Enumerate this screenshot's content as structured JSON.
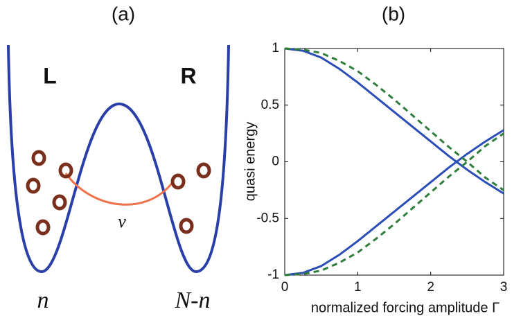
{
  "panel_a": {
    "label": "(a)",
    "left": "L",
    "right": "R",
    "coupling": "v",
    "left_count": "n",
    "right_count": "N-n"
  },
  "chart_data": {
    "type": "line",
    "title": "(b)",
    "xlabel": "normalized forcing amplitude Γ",
    "ylabel": "quasi energy",
    "x": [
      0,
      0.25,
      0.5,
      0.75,
      1,
      1.25,
      1.5,
      1.75,
      2,
      2.25,
      2.5,
      2.75,
      3
    ],
    "series": [
      {
        "color": "#2a4db8",
        "dashed": false,
        "values": [
          1,
          0.98,
          0.92,
          0.82,
          0.7,
          0.57,
          0.44,
          0.31,
          0.18,
          0.05,
          -0.07,
          -0.18,
          -0.28
        ]
      },
      {
        "color": "#2a4db8",
        "dashed": false,
        "values": [
          -1,
          -0.98,
          -0.92,
          -0.82,
          -0.7,
          -0.57,
          -0.44,
          -0.31,
          -0.18,
          -0.05,
          0.07,
          0.18,
          0.28
        ]
      },
      {
        "color": "#2e7d3a",
        "dashed": true,
        "values": [
          1,
          0.99,
          0.96,
          0.89,
          0.8,
          0.68,
          0.55,
          0.41,
          0.27,
          0.13,
          0,
          -0.14,
          -0.25
        ]
      },
      {
        "color": "#2e7d3a",
        "dashed": true,
        "values": [
          -1,
          -0.99,
          -0.96,
          -0.89,
          -0.8,
          -0.68,
          -0.55,
          -0.41,
          -0.27,
          -0.13,
          0,
          0.14,
          0.25
        ]
      }
    ],
    "xlim": [
      0,
      3
    ],
    "ylim": [
      -1,
      1
    ],
    "xticks": [
      0,
      1,
      2,
      3
    ],
    "yticks": [
      -1,
      -0.5,
      0,
      0.5,
      1
    ]
  }
}
